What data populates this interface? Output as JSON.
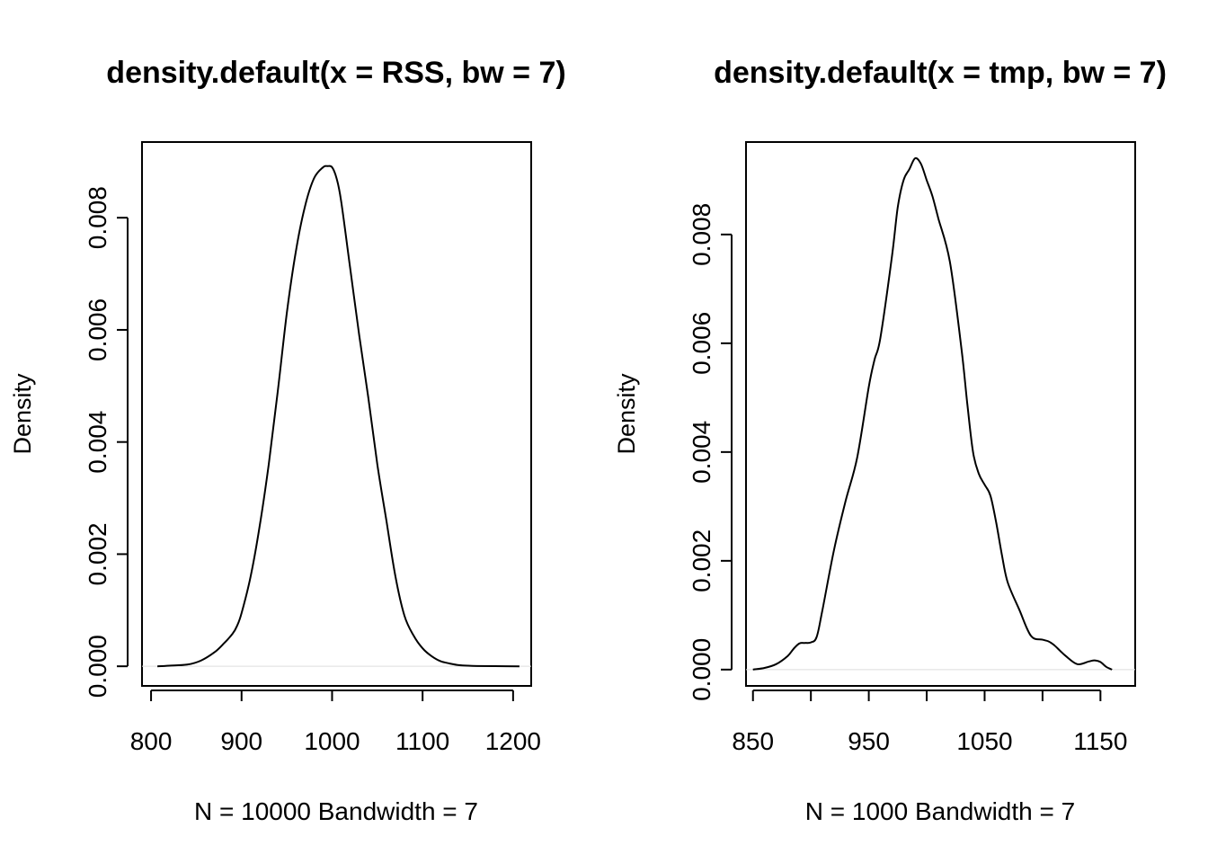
{
  "chart_data": [
    {
      "type": "line",
      "title": "density.default(x = RSS, bw = 7)",
      "xlabel": "N = 10000   Bandwidth = 7",
      "ylabel": "Density",
      "xlim": [
        790,
        1220
      ],
      "ylim": [
        -0.00035,
        0.00935
      ],
      "x_ticks": [
        "800",
        "900",
        "1000",
        "1100",
        "1200"
      ],
      "x_tick_values": [
        800,
        900,
        1000,
        1100,
        1200
      ],
      "y_ticks": [
        "0.000",
        "0.002",
        "0.004",
        "0.006",
        "0.008"
      ],
      "y_tick_values": [
        0,
        0.002,
        0.004,
        0.006,
        0.008
      ],
      "grid": false,
      "series": [
        {
          "x": [
            807,
            820,
            840,
            855,
            870,
            880,
            890,
            895,
            900,
            910,
            920,
            930,
            940,
            950,
            960,
            970,
            980,
            990,
            995,
            1000,
            1005,
            1010,
            1020,
            1030,
            1040,
            1050,
            1060,
            1070,
            1080,
            1090,
            1100,
            1110,
            1120,
            1130,
            1140,
            1150,
            1160,
            1180,
            1207
          ],
          "y": [
            0.0,
            1e-05,
            3e-05,
            0.0001,
            0.00025,
            0.0004,
            0.00058,
            0.00072,
            0.00095,
            0.0016,
            0.0025,
            0.0036,
            0.0049,
            0.0063,
            0.0074,
            0.0082,
            0.0087,
            0.0089,
            0.00892,
            0.0089,
            0.0087,
            0.0083,
            0.0071,
            0.0059,
            0.0048,
            0.0036,
            0.0026,
            0.0016,
            0.0009,
            0.00055,
            0.00032,
            0.00018,
            9e-05,
            5e-05,
            2e-05,
            1e-05,
            5e-06,
            2e-06,
            0.0
          ]
        }
      ]
    },
    {
      "type": "line",
      "title": "density.default(x = tmp, bw = 7)",
      "xlabel": "N = 1000   Bandwidth = 7",
      "ylabel": "Density",
      "xlim": [
        844,
        1180
      ],
      "ylim": [
        -0.0003,
        0.0097
      ],
      "x_ticks": [
        "850",
        "950",
        "1050",
        "1150"
      ],
      "x_tick_values": [
        850,
        900,
        950,
        1000,
        1050,
        1100,
        1150
      ],
      "x_labeled_ticks": [
        850,
        950,
        1050,
        1150
      ],
      "y_ticks": [
        "0.000",
        "0.002",
        "0.004",
        "0.006",
        "0.008"
      ],
      "y_tick_values": [
        0,
        0.002,
        0.004,
        0.006,
        0.008
      ],
      "grid": false,
      "series": [
        {
          "x": [
            850,
            860,
            870,
            880,
            885,
            890,
            895,
            900,
            905,
            910,
            920,
            930,
            940,
            950,
            955,
            960,
            970,
            975,
            980,
            985,
            990,
            995,
            1000,
            1005,
            1010,
            1020,
            1030,
            1035,
            1040,
            1045,
            1050,
            1055,
            1060,
            1065,
            1070,
            1080,
            1090,
            1100,
            1105,
            1110,
            1115,
            1120,
            1130,
            1140,
            1145,
            1150,
            1155,
            1160
          ],
          "y": [
            0.0,
            3e-05,
            0.0001,
            0.00025,
            0.00038,
            0.00048,
            0.00049,
            0.0005,
            0.0006,
            0.0011,
            0.0022,
            0.0031,
            0.0039,
            0.0052,
            0.0057,
            0.0061,
            0.0076,
            0.0085,
            0.009,
            0.0092,
            0.0094,
            0.0093,
            0.009,
            0.0087,
            0.0083,
            0.0075,
            0.0059,
            0.0049,
            0.004,
            0.0036,
            0.0034,
            0.0032,
            0.0027,
            0.0021,
            0.0016,
            0.0011,
            0.00062,
            0.00055,
            0.00052,
            0.00045,
            0.00035,
            0.00025,
            0.0001,
            0.00015,
            0.00017,
            0.00014,
            5e-05,
            0.0
          ]
        }
      ]
    }
  ]
}
